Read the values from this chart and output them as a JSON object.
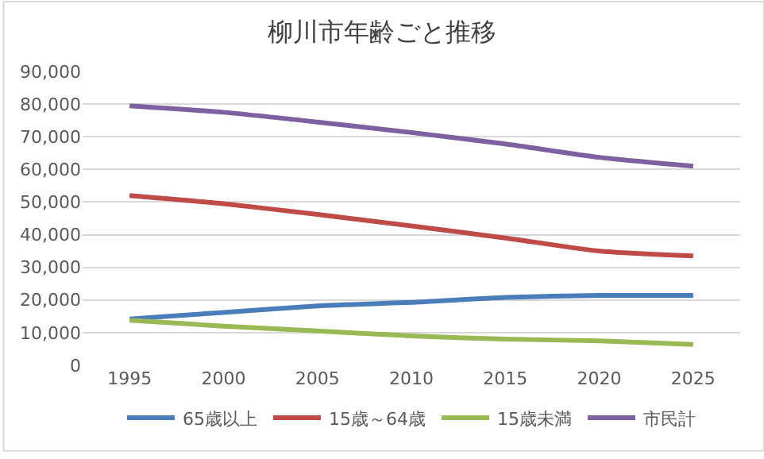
{
  "chart_data": {
    "type": "line",
    "title": "柳川市年齢ごと推移",
    "categories": [
      "1995",
      "2000",
      "2005",
      "2010",
      "2015",
      "2020",
      "2025"
    ],
    "series": [
      {
        "name": "65歳以上",
        "color": "#4a7ebb",
        "values": [
          14200,
          16200,
          18200,
          19300,
          20800,
          21400,
          21400
        ]
      },
      {
        "name": "15歳～64歳",
        "color": "#be4b48",
        "values": [
          52000,
          49500,
          46200,
          42700,
          39000,
          35000,
          33500
        ]
      },
      {
        "name": "15歳未満",
        "color": "#98b954",
        "values": [
          13800,
          12000,
          10500,
          9000,
          8000,
          7500,
          6400
        ]
      },
      {
        "name": "市民計",
        "color": "#7d60a0",
        "values": [
          79500,
          77500,
          74500,
          71300,
          67800,
          63700,
          61000
        ]
      }
    ],
    "ylim": [
      0,
      90000
    ],
    "yticks": [
      {
        "value": 0,
        "label": "0"
      },
      {
        "value": 10000,
        "label": "10,000"
      },
      {
        "value": 20000,
        "label": "20,000"
      },
      {
        "value": 30000,
        "label": "30,000"
      },
      {
        "value": 40000,
        "label": "40,000"
      },
      {
        "value": 50000,
        "label": "50,000"
      },
      {
        "value": 60000,
        "label": "60,000"
      },
      {
        "value": 70000,
        "label": "70,000"
      },
      {
        "value": 80000,
        "label": "80,000"
      },
      {
        "value": 90000,
        "label": "90,000"
      }
    ],
    "grid": "y",
    "legend": "bottom",
    "marker": "none",
    "line_style": "solid"
  }
}
